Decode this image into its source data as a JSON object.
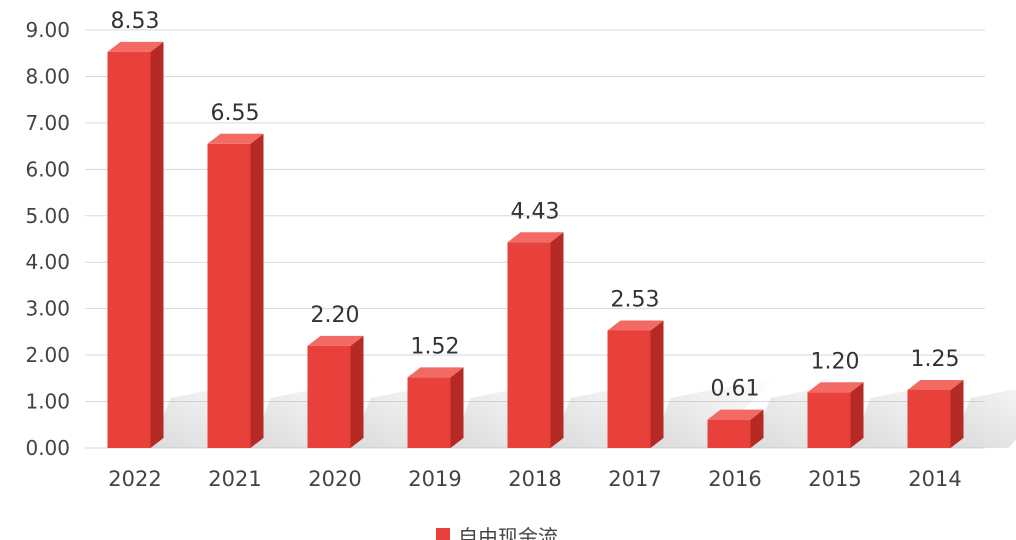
{
  "chart_data": {
    "type": "bar",
    "categories": [
      "2022",
      "2021",
      "2020",
      "2019",
      "2018",
      "2017",
      "2016",
      "2015",
      "2014"
    ],
    "series": [
      {
        "name": "自由现金流",
        "values": [
          8.53,
          6.55,
          2.2,
          1.52,
          4.43,
          2.53,
          0.61,
          1.2,
          1.25
        ]
      }
    ],
    "value_labels": [
      "8.53",
      "6.55",
      "2.20",
      "1.52",
      "4.43",
      "2.53",
      "0.61",
      "1.20",
      "1.25"
    ],
    "y_ticks": [
      "0.00",
      "1.00",
      "2.00",
      "3.00",
      "4.00",
      "5.00",
      "6.00",
      "7.00",
      "8.00",
      "9.00"
    ],
    "ylim": [
      0,
      9
    ],
    "grid": true,
    "legend_position": "bottom",
    "title": "",
    "xlabel": "",
    "ylabel": ""
  },
  "colors": {
    "bar_front": "#e8403a",
    "bar_side": "#b52a24",
    "bar_top": "#f26a63",
    "grid": "#d9d9d9",
    "text": "#444444"
  }
}
